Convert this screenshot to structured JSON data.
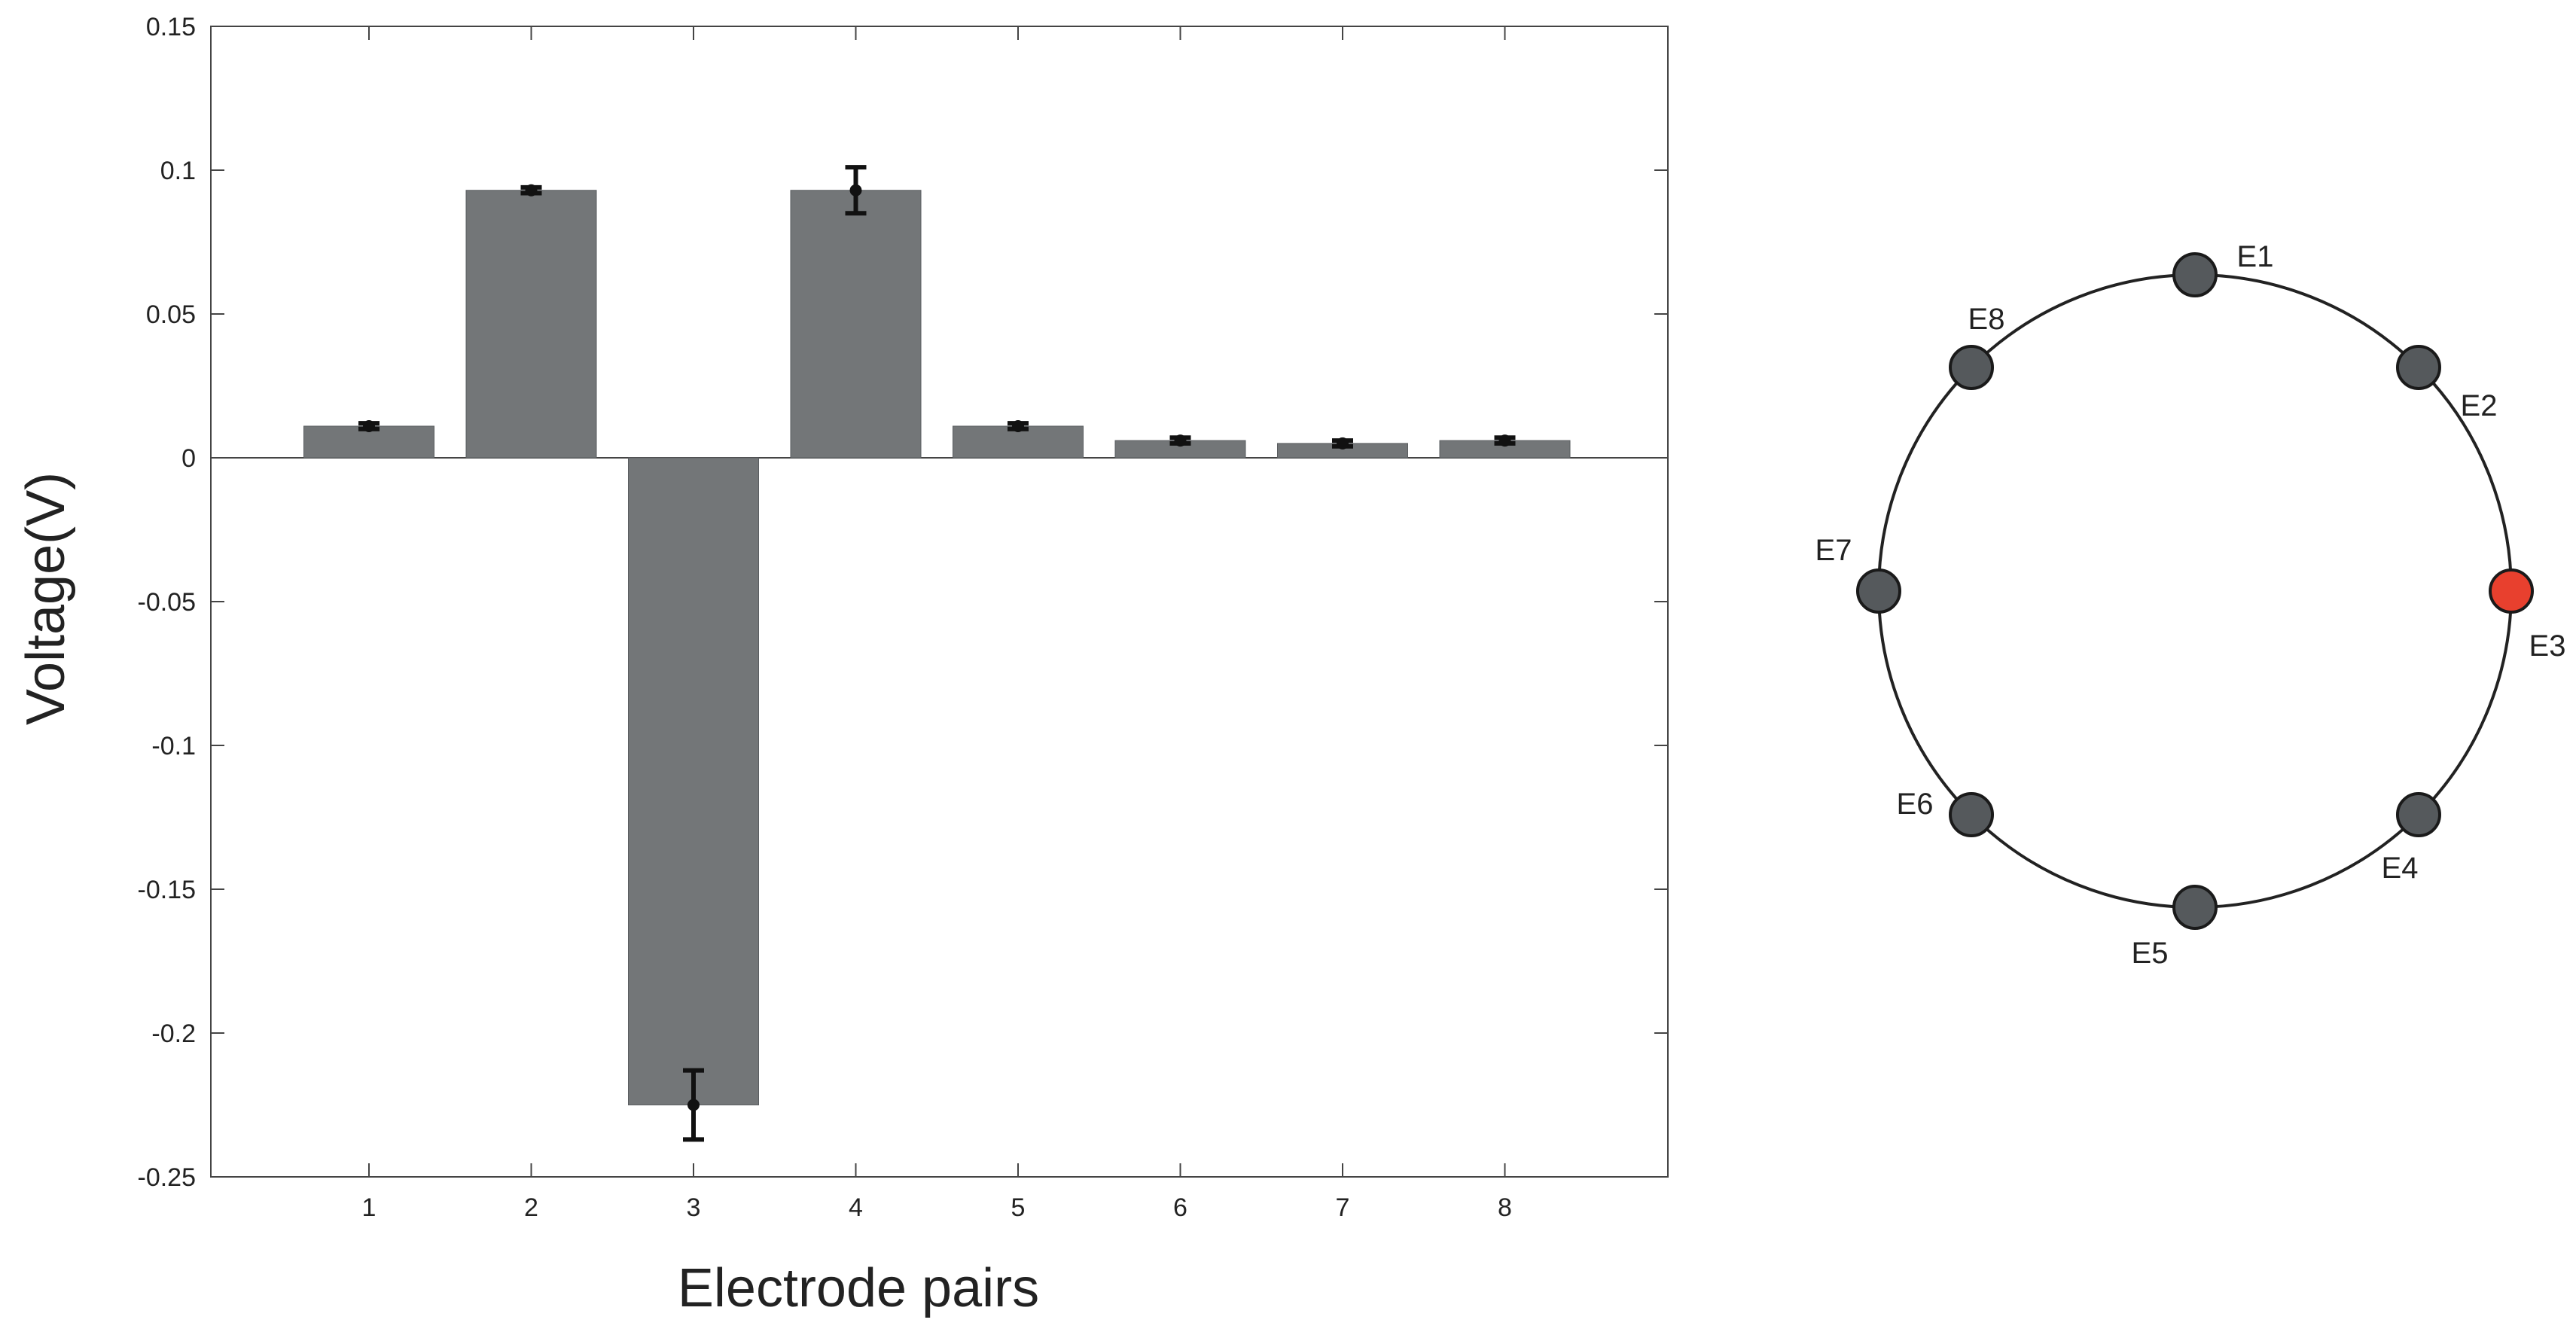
{
  "chart_data": {
    "type": "bar",
    "title": "",
    "xlabel": "Electrode pairs",
    "ylabel": "Voltage(V)",
    "categories": [
      "1",
      "2",
      "3",
      "4",
      "5",
      "6",
      "7",
      "8"
    ],
    "values": [
      0.011,
      0.093,
      -0.225,
      0.093,
      0.011,
      0.006,
      0.005,
      0.006
    ],
    "error": [
      0.001,
      0.001,
      0.012,
      0.008,
      0.001,
      0.001,
      0.001,
      0.001
    ],
    "ylim": [
      -0.25,
      0.15
    ],
    "yticks": [
      0.15,
      0.1,
      0.05,
      0,
      -0.05,
      -0.1,
      -0.15,
      -0.2,
      -0.25
    ],
    "ytick_labels": [
      "0.15",
      "0.1",
      "0.05",
      "0",
      "-0.05",
      "-0.1",
      "-0.15",
      "-0.2",
      "-0.25"
    ],
    "grid": false,
    "bar_color": "#737678"
  },
  "electrode_diagram": {
    "electrodes": [
      {
        "label": "E1",
        "active": false
      },
      {
        "label": "E2",
        "active": false
      },
      {
        "label": "E3",
        "active": true
      },
      {
        "label": "E4",
        "active": false
      },
      {
        "label": "E5",
        "active": false
      },
      {
        "label": "E6",
        "active": false
      },
      {
        "label": "E7",
        "active": false
      },
      {
        "label": "E8",
        "active": false
      }
    ],
    "inactive_color": "#55595c",
    "active_color": "#e8402e"
  }
}
